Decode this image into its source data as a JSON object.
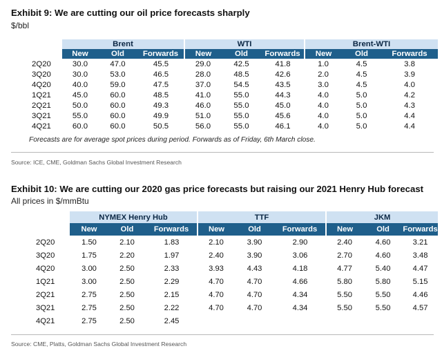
{
  "exhibit9": {
    "title": "Exhibit 9: We are cutting our oil price forecasts sharply",
    "units": "$/bbl",
    "groups": [
      "Brent",
      "WTI",
      "Brent-WTI"
    ],
    "columns": [
      "New",
      "Old",
      "Forwards"
    ],
    "rows": [
      {
        "period": "2Q20",
        "values": [
          "30.0",
          "47.0",
          "45.5",
          "29.0",
          "42.5",
          "41.8",
          "1.0",
          "4.5",
          "3.8"
        ]
      },
      {
        "period": "3Q20",
        "values": [
          "30.0",
          "53.0",
          "46.5",
          "28.0",
          "48.5",
          "42.6",
          "2.0",
          "4.5",
          "3.9"
        ]
      },
      {
        "period": "4Q20",
        "values": [
          "40.0",
          "59.0",
          "47.5",
          "37.0",
          "54.5",
          "43.5",
          "3.0",
          "4.5",
          "4.0"
        ]
      },
      {
        "period": "1Q21",
        "values": [
          "45.0",
          "60.0",
          "48.5",
          "41.0",
          "55.0",
          "44.3",
          "4.0",
          "5.0",
          "4.2"
        ]
      },
      {
        "period": "2Q21",
        "values": [
          "50.0",
          "60.0",
          "49.3",
          "46.0",
          "55.0",
          "45.0",
          "4.0",
          "5.0",
          "4.3"
        ]
      },
      {
        "period": "3Q21",
        "values": [
          "55.0",
          "60.0",
          "49.9",
          "51.0",
          "55.0",
          "45.6",
          "4.0",
          "5.0",
          "4.4"
        ]
      },
      {
        "period": "4Q21",
        "values": [
          "60.0",
          "60.0",
          "50.5",
          "56.0",
          "55.0",
          "46.1",
          "4.0",
          "5.0",
          "4.4"
        ]
      }
    ],
    "note": "Forecasts are for average spot prices during period. Forwards as of Friday, 6th March close.",
    "source": "Source: ICE, CME, Goldman Sachs Global Investment Research"
  },
  "exhibit10": {
    "title": "Exhibit 10: We are cutting our 2020 gas price forecasts but raising our 2021 Henry Hub forecast",
    "units": "All prices in $/mmBtu",
    "groups": [
      "NYMEX Henry Hub",
      "TTF",
      "JKM"
    ],
    "columns": [
      "New",
      "Old",
      "Forwards"
    ],
    "rows": [
      {
        "period": "2Q20",
        "values": [
          "1.50",
          "2.10",
          "1.83",
          "2.10",
          "3.90",
          "2.90",
          "2.40",
          "4.60",
          "3.21"
        ]
      },
      {
        "period": "3Q20",
        "values": [
          "1.75",
          "2.20",
          "1.97",
          "2.40",
          "3.90",
          "3.06",
          "2.70",
          "4.60",
          "3.48"
        ]
      },
      {
        "period": "4Q20",
        "values": [
          "3.00",
          "2.50",
          "2.33",
          "3.93",
          "4.43",
          "4.18",
          "4.77",
          "5.40",
          "4.47"
        ]
      },
      {
        "period": "1Q21",
        "values": [
          "3.00",
          "2.50",
          "2.29",
          "4.70",
          "4.70",
          "4.66",
          "5.80",
          "5.80",
          "5.15"
        ]
      },
      {
        "period": "2Q21",
        "values": [
          "2.75",
          "2.50",
          "2.15",
          "4.70",
          "4.70",
          "4.34",
          "5.50",
          "5.50",
          "4.46"
        ]
      },
      {
        "period": "3Q21",
        "values": [
          "2.75",
          "2.50",
          "2.22",
          "4.70",
          "4.70",
          "4.34",
          "5.50",
          "5.50",
          "4.57"
        ]
      },
      {
        "period": "4Q21",
        "values": [
          "2.75",
          "2.50",
          "2.45",
          "",
          "",
          "",
          "",
          "",
          ""
        ]
      }
    ],
    "source": "Source: CME, Platts, Goldman Sachs Global Investment Research"
  }
}
